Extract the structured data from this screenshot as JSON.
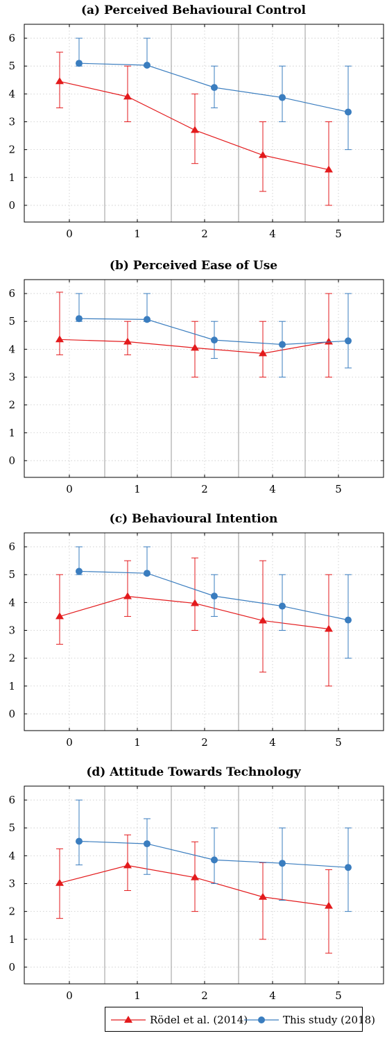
{
  "chart_data": [
    {
      "type": "line",
      "title": "(a) Perceived Behavioural Control",
      "categories": [
        "0",
        "1",
        "2",
        "4",
        "5"
      ],
      "ylim": [
        -0.6,
        6.5
      ],
      "yticks": [
        0,
        1,
        2,
        3,
        4,
        5,
        6
      ],
      "grid": true,
      "series": [
        {
          "name": "Rödel et al. (2014)",
          "color": "#e31a1c",
          "marker": "triangle",
          "values": [
            4.45,
            3.9,
            2.7,
            1.8,
            1.28
          ],
          "err_low": [
            3.5,
            3.0,
            1.5,
            0.5,
            0.0
          ],
          "err_high": [
            5.5,
            5.0,
            4.0,
            3.0,
            3.0
          ]
        },
        {
          "name": "This study (2018)",
          "color": "#3a7dbf",
          "marker": "circle",
          "values": [
            5.1,
            5.03,
            4.23,
            3.87,
            3.35
          ],
          "err_low": [
            5.0,
            5.0,
            3.5,
            3.0,
            2.0
          ],
          "err_high": [
            6.0,
            6.0,
            5.0,
            5.0,
            5.0
          ]
        }
      ]
    },
    {
      "type": "line",
      "title": "(b) Perceived Ease of Use",
      "categories": [
        "0",
        "1",
        "2",
        "4",
        "5"
      ],
      "ylim": [
        -0.6,
        6.5
      ],
      "yticks": [
        0,
        1,
        2,
        3,
        4,
        5,
        6
      ],
      "grid": true,
      "series": [
        {
          "name": "Rödel et al. (2014)",
          "color": "#e31a1c",
          "marker": "triangle",
          "values": [
            4.35,
            4.27,
            4.05,
            3.85,
            4.27
          ],
          "err_low": [
            3.8,
            3.8,
            3.0,
            3.0,
            3.0
          ],
          "err_high": [
            6.05,
            5.0,
            5.0,
            5.0,
            6.0
          ]
        },
        {
          "name": "This study (2018)",
          "color": "#3a7dbf",
          "marker": "circle",
          "values": [
            5.1,
            5.07,
            4.33,
            4.17,
            4.3
          ],
          "err_low": [
            5.0,
            5.0,
            3.67,
            3.0,
            3.33
          ],
          "err_high": [
            6.0,
            6.0,
            5.0,
            5.0,
            6.0
          ]
        }
      ]
    },
    {
      "type": "line",
      "title": "(c) Behavioural Intention",
      "categories": [
        "0",
        "1",
        "2",
        "4",
        "5"
      ],
      "ylim": [
        -0.6,
        6.5
      ],
      "yticks": [
        0,
        1,
        2,
        3,
        4,
        5,
        6
      ],
      "grid": true,
      "series": [
        {
          "name": "Rödel et al. (2014)",
          "color": "#e31a1c",
          "marker": "triangle",
          "values": [
            3.5,
            4.22,
            3.97,
            3.35,
            3.05
          ],
          "err_low": [
            2.5,
            3.5,
            3.0,
            1.5,
            1.0
          ],
          "err_high": [
            5.0,
            5.5,
            5.6,
            5.5,
            5.0
          ]
        },
        {
          "name": "This study (2018)",
          "color": "#3a7dbf",
          "marker": "circle",
          "values": [
            5.12,
            5.05,
            4.23,
            3.87,
            3.37
          ],
          "err_low": [
            5.0,
            5.0,
            3.5,
            3.0,
            2.0
          ],
          "err_high": [
            6.0,
            6.0,
            5.0,
            5.0,
            5.0
          ]
        }
      ]
    },
    {
      "type": "line",
      "title": "(d) Attitude Towards Technology",
      "categories": [
        "0",
        "1",
        "2",
        "4",
        "5"
      ],
      "ylim": [
        -0.6,
        6.5
      ],
      "yticks": [
        0,
        1,
        2,
        3,
        4,
        5,
        6
      ],
      "grid": true,
      "series": [
        {
          "name": "Rödel et al. (2014)",
          "color": "#e31a1c",
          "marker": "triangle",
          "values": [
            3.02,
            3.65,
            3.22,
            2.52,
            2.2
          ],
          "err_low": [
            1.75,
            2.75,
            2.0,
            1.0,
            0.5
          ],
          "err_high": [
            4.25,
            4.75,
            4.5,
            3.75,
            3.5
          ]
        },
        {
          "name": "This study (2018)",
          "color": "#3a7dbf",
          "marker": "circle",
          "values": [
            4.52,
            4.43,
            3.85,
            3.73,
            3.58
          ],
          "err_low": [
            3.67,
            3.33,
            3.0,
            2.4,
            2.0
          ],
          "err_high": [
            6.0,
            5.33,
            5.0,
            5.0,
            5.0
          ]
        }
      ]
    }
  ],
  "legend": {
    "placement": "bottom",
    "entries": [
      {
        "label": "Rödel et al. (2014)",
        "color": "#e31a1c",
        "marker": "triangle"
      },
      {
        "label": "This study (2018)",
        "color": "#3a7dbf",
        "marker": "circle"
      }
    ]
  }
}
